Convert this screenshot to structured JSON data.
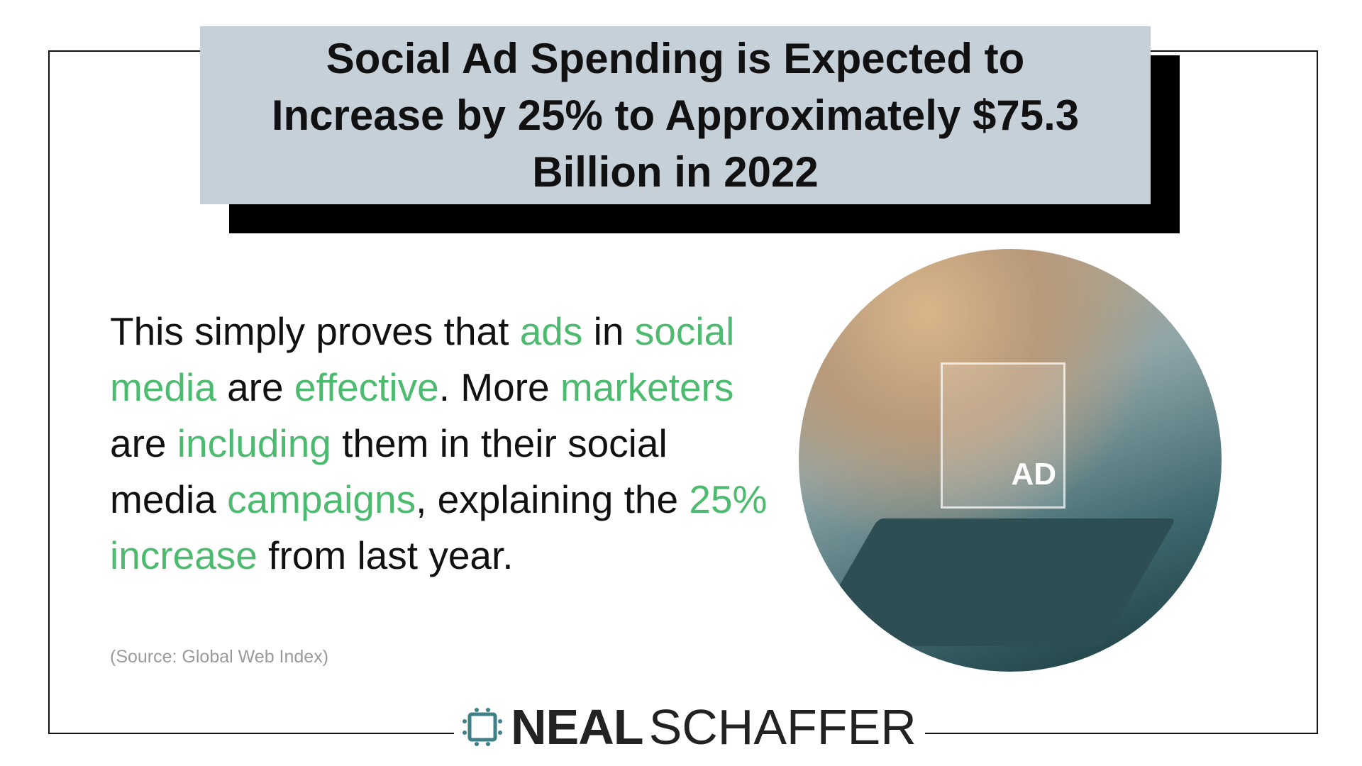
{
  "title": "Social Ad Spending is Expected to Increase by 25% to Approximately $75.3 Billion in 2022",
  "body": [
    {
      "text": "This simply proves that ",
      "highlight": false
    },
    {
      "text": "ads",
      "highlight": true
    },
    {
      "text": " in ",
      "highlight": false
    },
    {
      "text": "social media",
      "highlight": true
    },
    {
      "text": " are ",
      "highlight": false
    },
    {
      "text": "effective",
      "highlight": true
    },
    {
      "text": ". More ",
      "highlight": false
    },
    {
      "text": "marketers",
      "highlight": true
    },
    {
      "text": " are ",
      "highlight": false
    },
    {
      "text": "including",
      "highlight": true
    },
    {
      "text": " them in their social media ",
      "highlight": false
    },
    {
      "text": "campaigns",
      "highlight": true
    },
    {
      "text": ", explaining the ",
      "highlight": false
    },
    {
      "text": "25% increase",
      "highlight": true
    },
    {
      "text": " from last year.",
      "highlight": false
    }
  ],
  "source": "(Source: Global Web Index)",
  "image": {
    "ad_label": "AD"
  },
  "logo": {
    "first": "NEAL",
    "second": "SCHAFFER"
  },
  "colors": {
    "accent": "#4dbb6f",
    "title_bg": "#c6d0d8",
    "logo_icon": "#3f7f86"
  }
}
